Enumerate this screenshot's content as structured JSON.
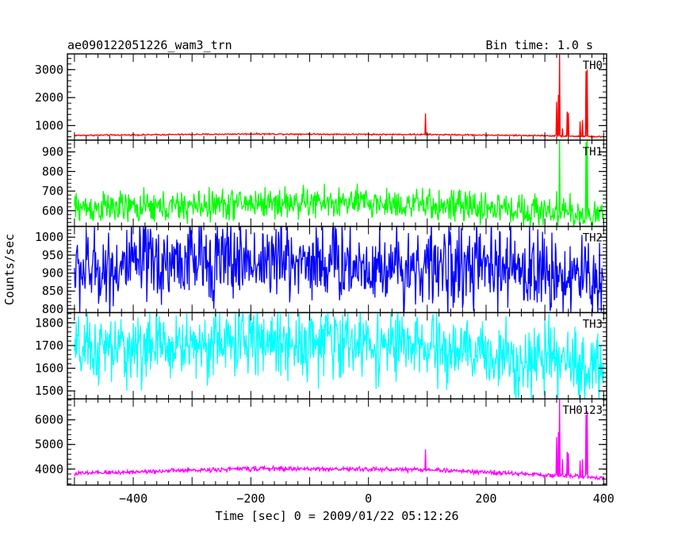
{
  "chart_data": {
    "type": "line",
    "title_left": "ae090122051226_wam3_trn",
    "title_right": "Bin time: 1.0 s",
    "xlabel": "Time [sec] 0 = 2009/01/22 05:12:26",
    "ylabel": "Counts/sec",
    "xlim": [
      -512,
      405
    ],
    "x_ticks": [
      -400,
      -200,
      0,
      200,
      400
    ],
    "x_tick_labels": [
      "−400",
      "−200",
      "0",
      "200",
      "400"
    ],
    "panels": [
      {
        "name": "TH0",
        "color": "#ff0000",
        "ylim": [
          480,
          3560
        ],
        "y_ticks": [
          1000,
          2000,
          3000
        ],
        "y_tick_labels": [
          "1000",
          "2000",
          "3000"
        ],
        "x_range": [
          -500,
          400
        ],
        "trend": [
          [
            -500,
            650
          ],
          [
            -200,
            700
          ],
          [
            100,
            680
          ],
          [
            300,
            640
          ],
          [
            400,
            600
          ]
        ],
        "noise": 12,
        "spikes": [
          [
            97,
            1430
          ],
          [
            320,
            1850
          ],
          [
            323,
            2100
          ],
          [
            325,
            3550
          ],
          [
            330,
            900
          ],
          [
            338,
            1500
          ],
          [
            340,
            1450
          ],
          [
            360,
            1150
          ],
          [
            364,
            1200
          ],
          [
            370,
            2950
          ],
          [
            372,
            3000
          ]
        ]
      },
      {
        "name": "TH1",
        "color": "#00ff00",
        "ylim": [
          520,
          960
        ],
        "y_ticks": [
          600,
          700,
          800,
          900
        ],
        "y_tick_labels": [
          "600",
          "700",
          "800",
          "900"
        ],
        "x_range": [
          -500,
          400
        ],
        "trend": [
          [
            -500,
            615
          ],
          [
            -350,
            615
          ],
          [
            -200,
            640
          ],
          [
            0,
            640
          ],
          [
            200,
            615
          ],
          [
            300,
            600
          ],
          [
            400,
            570
          ]
        ],
        "noise": 40,
        "spikes": [
          [
            320,
            700
          ],
          [
            325,
            960
          ],
          [
            370,
            950
          ],
          [
            372,
            960
          ]
        ]
      },
      {
        "name": "TH2",
        "color": "#0000ff",
        "ylim": [
          790,
          1030
        ],
        "y_ticks": [
          800,
          850,
          900,
          950,
          1000
        ],
        "y_tick_labels": [
          "800",
          "850",
          "900",
          "950",
          "1000"
        ],
        "x_range": [
          -500,
          400
        ],
        "trend": [
          [
            -500,
            905
          ],
          [
            -300,
            935
          ],
          [
            -100,
            935
          ],
          [
            0,
            920
          ],
          [
            200,
            915
          ],
          [
            300,
            905
          ],
          [
            400,
            880
          ]
        ],
        "noise": 55,
        "spikes": []
      },
      {
        "name": "TH3",
        "color": "#00ffff",
        "ylim": [
          1465,
          1845
        ],
        "y_ticks": [
          1500,
          1600,
          1700,
          1800
        ],
        "y_tick_labels": [
          "1500",
          "1600",
          "1700",
          "1800"
        ],
        "x_range": [
          -500,
          400
        ],
        "trend": [
          [
            -500,
            1670
          ],
          [
            -200,
            1720
          ],
          [
            0,
            1710
          ],
          [
            200,
            1660
          ],
          [
            300,
            1630
          ],
          [
            400,
            1600
          ]
        ],
        "noise": 75,
        "spikes": []
      },
      {
        "name": "TH0123",
        "color": "#ff00ff",
        "ylim": [
          3350,
          6850
        ],
        "y_ticks": [
          4000,
          5000,
          6000
        ],
        "y_tick_labels": [
          "4000",
          "5000",
          "6000"
        ],
        "x_range": [
          -500,
          400
        ],
        "trend": [
          [
            -500,
            3820
          ],
          [
            -200,
            4020
          ],
          [
            100,
            3980
          ],
          [
            300,
            3760
          ],
          [
            400,
            3650
          ]
        ],
        "noise": 45,
        "spikes": [
          [
            97,
            4800
          ],
          [
            320,
            5300
          ],
          [
            323,
            5500
          ],
          [
            325,
            6850
          ],
          [
            330,
            4400
          ],
          [
            338,
            4700
          ],
          [
            340,
            4650
          ],
          [
            360,
            4350
          ],
          [
            364,
            4400
          ],
          [
            370,
            6200
          ],
          [
            372,
            6350
          ]
        ]
      }
    ]
  }
}
